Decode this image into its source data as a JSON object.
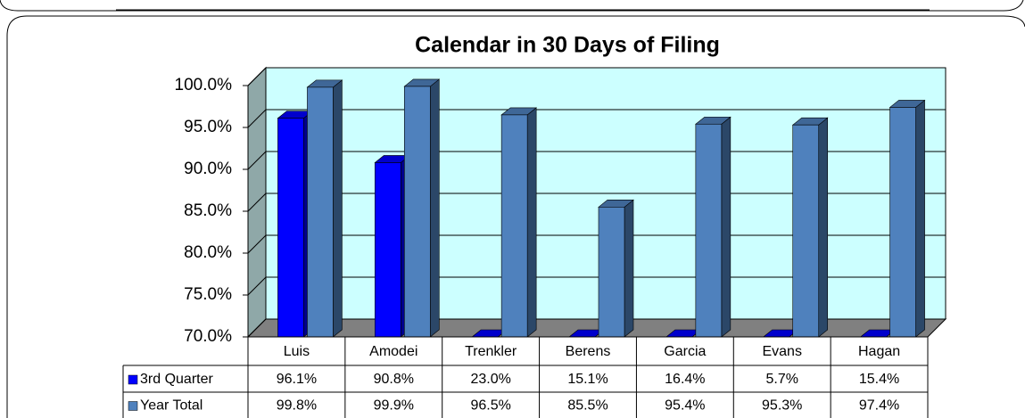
{
  "chart_data": {
    "type": "bar",
    "title": "Calendar in 30 Days of Filing",
    "categories": [
      "Luis",
      "Amodei",
      "Trenkler",
      "Berens",
      "Garcia",
      "Evans",
      "Hagan"
    ],
    "series": [
      {
        "name": "3rd Quarter",
        "color": "#0000ff",
        "values": [
          96.1,
          90.8,
          23.0,
          15.1,
          16.4,
          5.7,
          15.4
        ],
        "value_labels": [
          "96.1%",
          "90.8%",
          "23.0%",
          "15.1%",
          "16.4%",
          "5.7%",
          "15.4%"
        ]
      },
      {
        "name": "Year Total",
        "color": "#4f81bd",
        "values": [
          99.8,
          99.9,
          96.5,
          85.5,
          95.4,
          95.3,
          97.4
        ],
        "value_labels": [
          "99.8%",
          "99.9%",
          "96.5%",
          "85.5%",
          "95.4%",
          "95.3%",
          "97.4%"
        ]
      }
    ],
    "ylim": [
      70,
      100
    ],
    "yticks": [
      {
        "value": 70,
        "label": "70.0%"
      },
      {
        "value": 75,
        "label": "75.0%"
      },
      {
        "value": 80,
        "label": "80.0%"
      },
      {
        "value": 85,
        "label": "85.0%"
      },
      {
        "value": 90,
        "label": "90.0%"
      },
      {
        "value": 95,
        "label": "95.0%"
      },
      {
        "value": 100,
        "label": "100.0%"
      }
    ],
    "grid": true
  }
}
